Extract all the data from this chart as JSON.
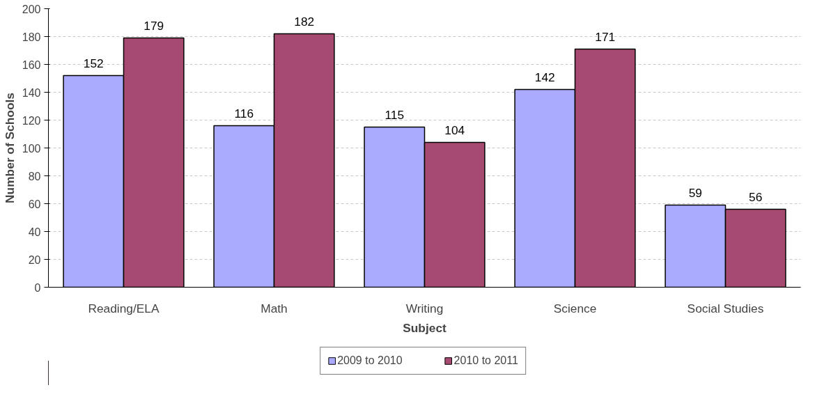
{
  "chart_data": {
    "type": "bar",
    "xlabel": "Subject",
    "ylabel": "Number of Schools",
    "categories": [
      "Reading/ELA",
      "Math",
      "Writing",
      "Science",
      "Social Studies"
    ],
    "series": [
      {
        "name": "2009 to 2010",
        "color": "#aaaaff",
        "values": [
          152,
          116,
          115,
          142,
          59
        ]
      },
      {
        "name": "2010 to 2011",
        "color": "#a64a72",
        "values": [
          179,
          182,
          104,
          171,
          56
        ]
      }
    ],
    "ylim": [
      0,
      200
    ],
    "yticks": [
      0,
      20,
      40,
      60,
      80,
      100,
      120,
      140,
      160,
      180,
      200
    ],
    "grid": "y",
    "legend": "bottom",
    "data_labels": true
  }
}
